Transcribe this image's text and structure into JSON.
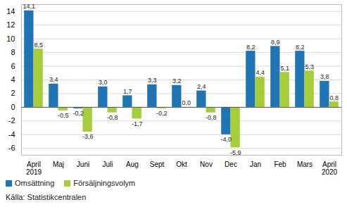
{
  "chart_data": {
    "type": "bar",
    "categories": [
      "April\n2019",
      "Maj",
      "Juni",
      "Juli",
      "Aug",
      "Sept",
      "Okt",
      "Nov",
      "Dec",
      "Jan",
      "Feb",
      "Mars",
      "April\n2020"
    ],
    "series": [
      {
        "name": "Omsättning",
        "color": "#1f74b4",
        "values": [
          14.1,
          3.4,
          -0.2,
          3.0,
          1.7,
          3.3,
          3.2,
          2.4,
          -4.0,
          8.2,
          8.9,
          8.2,
          3.8
        ],
        "value_labels": [
          "14,1",
          "3,4",
          "-0,2",
          "3,0",
          "1,7",
          "3,3",
          "3,2",
          "2,4",
          "-4,0",
          "8,2",
          "8,9",
          "8,2",
          "3,8"
        ]
      },
      {
        "name": "Försäljningsvolym",
        "color": "#a5cd39",
        "values": [
          8.5,
          -0.5,
          -3.6,
          -0.8,
          -1.7,
          -0.2,
          0.0,
          -0.8,
          -5.9,
          4.4,
          5.1,
          5.3,
          0.8
        ],
        "value_labels": [
          "8,5",
          "-0,5",
          "-3,6",
          "-0,8",
          "-1,7",
          "-0,2",
          "0,0",
          "-0,8",
          "-5,9",
          "4,4",
          "5,1",
          "5,3",
          "0,8"
        ]
      }
    ],
    "ylim": [
      -7,
      15
    ],
    "yticks": [
      -6,
      -4,
      -2,
      0,
      2,
      4,
      6,
      8,
      10,
      12,
      14
    ],
    "grid": true,
    "data_labels": true,
    "legend": "bottom-left",
    "source": "Källa: Statistikcentralen"
  }
}
